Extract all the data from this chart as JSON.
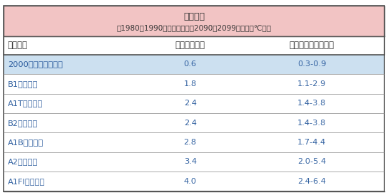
{
  "title_line1": "気温変化",
  "title_line2": "（1980～1990年を基準とした2090～2099年の差（℃））",
  "col_headers": [
    "シナリオ",
    "最良の推定値",
    "可能性が高い予測幅"
  ],
  "rows": [
    {
      "scenario": "2000年の濃度で一定",
      "best": "0.6",
      "range": "0.3-0.9",
      "highlight": true
    },
    {
      "scenario": "B1シナリオ",
      "best": "1.8",
      "range": "1.1-2.9",
      "highlight": false
    },
    {
      "scenario": "A1Tシナリオ",
      "best": "2.4",
      "range": "1.4-3.8",
      "highlight": false
    },
    {
      "scenario": "B2シナリオ",
      "best": "2.4",
      "range": "1.4-3.8",
      "highlight": false
    },
    {
      "scenario": "A1Bシナリオ",
      "best": "2.8",
      "range": "1.7-4.4",
      "highlight": false
    },
    {
      "scenario": "A2シナリオ",
      "best": "3.4",
      "range": "2.0-5.4",
      "highlight": false
    },
    {
      "scenario": "A1FIシナリオ",
      "best": "4.0",
      "range": "2.4-6.4",
      "highlight": false
    }
  ],
  "header_bg": "#f2c4c4",
  "col_header_bg": "#ffffff",
  "highlight_bg": "#cce0f0",
  "normal_bg": "#ffffff",
  "border_color": "#888888",
  "text_color_scenario": "#3060a0",
  "text_color_data": "#3060a0",
  "text_color_header": "#333333",
  "outer_border_color": "#555555",
  "figsize": [
    5.44,
    2.74
  ],
  "dpi": 100
}
